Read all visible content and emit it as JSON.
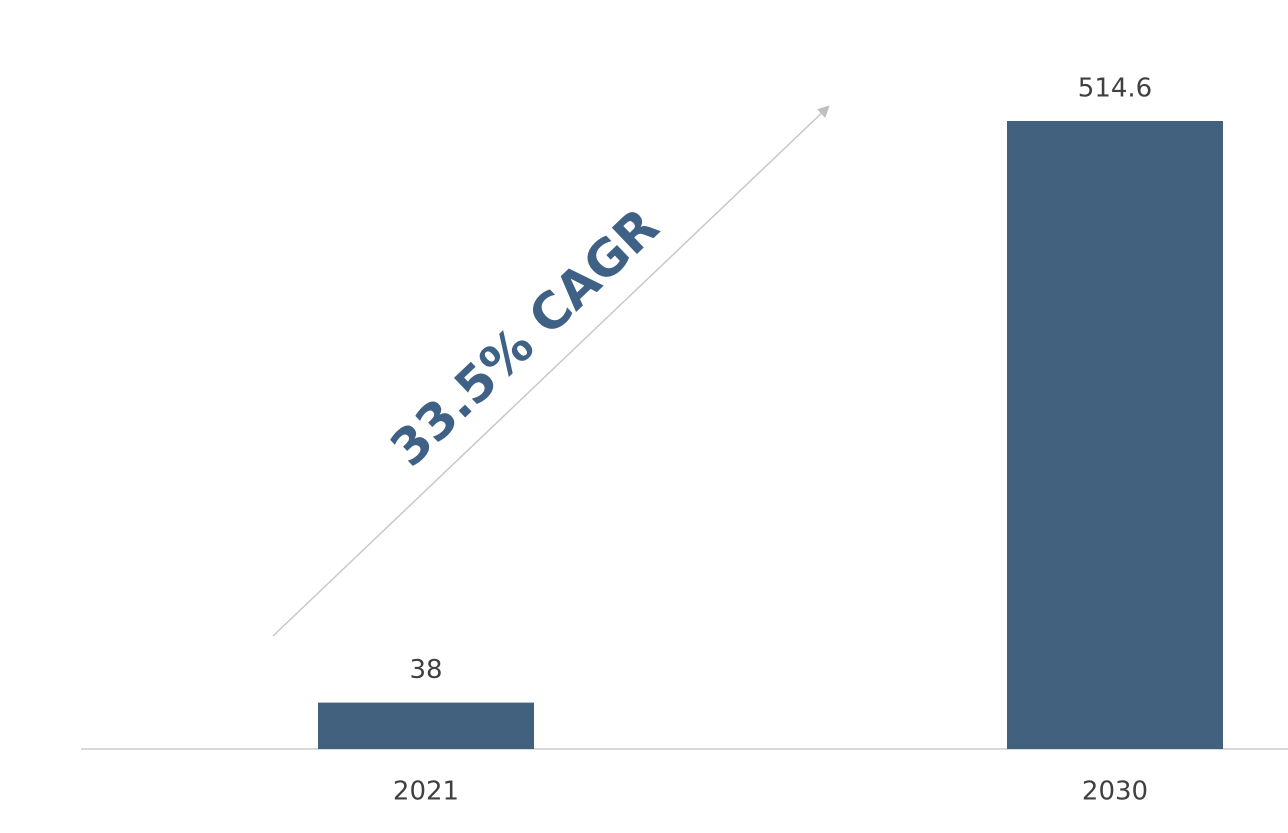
{
  "chart_data": {
    "type": "bar",
    "annotation": "33.5% CAGR",
    "categories": [
      "2021",
      "2030"
    ],
    "values": [
      38,
      514.6
    ],
    "color": "#41617f"
  }
}
